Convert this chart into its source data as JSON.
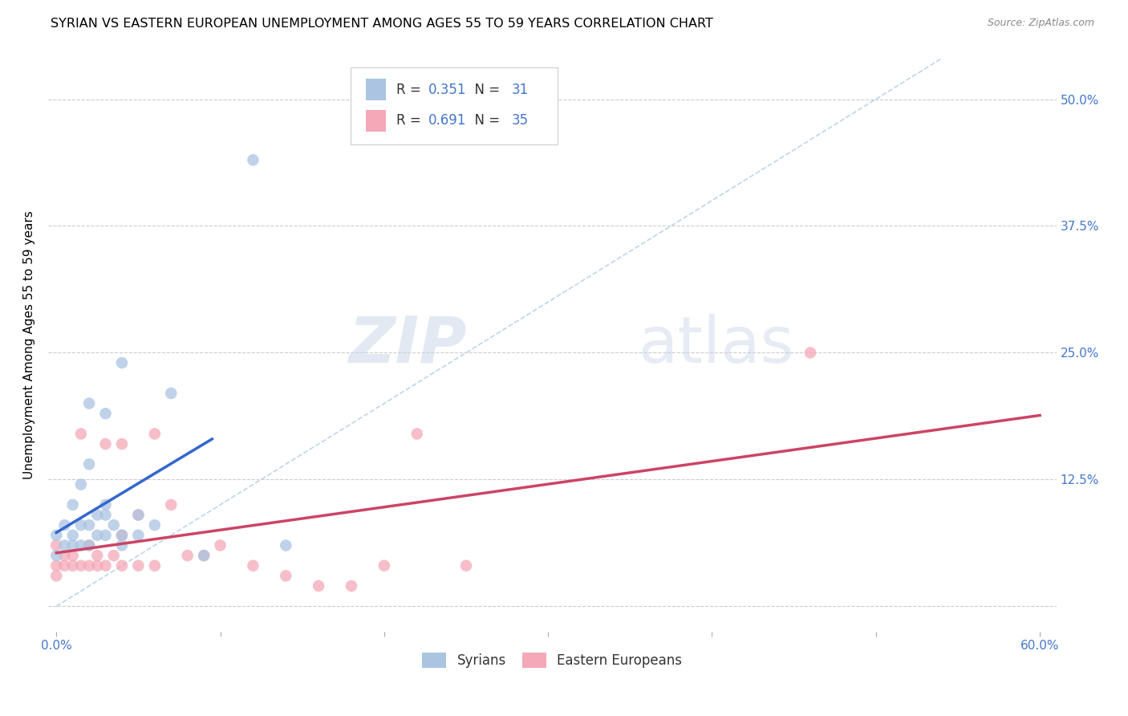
{
  "title": "SYRIAN VS EASTERN EUROPEAN UNEMPLOYMENT AMONG AGES 55 TO 59 YEARS CORRELATION CHART",
  "source": "Source: ZipAtlas.com",
  "ylabel": "Unemployment Among Ages 55 to 59 years",
  "xlim": [
    -0.005,
    0.61
  ],
  "ylim": [
    -0.025,
    0.54
  ],
  "xticks": [
    0.0,
    0.1,
    0.2,
    0.3,
    0.4,
    0.5,
    0.6
  ],
  "xticklabels": [
    "0.0%",
    "",
    "",
    "",
    "",
    "",
    "60.0%"
  ],
  "ytick_positions": [
    0.0,
    0.125,
    0.25,
    0.375,
    0.5
  ],
  "ytick_labels": [
    "",
    "12.5%",
    "25.0%",
    "37.5%",
    "50.0%"
  ],
  "watermark_zip": "ZIP",
  "watermark_atlas": "atlas",
  "syrians_r": 0.351,
  "syrians_n": 31,
  "eastern_r": 0.691,
  "eastern_n": 35,
  "syrians_color": "#aac4e2",
  "eastern_color": "#f4a8b8",
  "trend_syrian_color": "#3366cc",
  "trend_eastern_color": "#cc4466",
  "diagonal_color": "#b8d0e8",
  "syrians_x": [
    0.0,
    0.0,
    0.005,
    0.005,
    0.01,
    0.01,
    0.01,
    0.015,
    0.015,
    0.015,
    0.02,
    0.02,
    0.02,
    0.02,
    0.025,
    0.025,
    0.03,
    0.03,
    0.03,
    0.03,
    0.035,
    0.04,
    0.04,
    0.04,
    0.05,
    0.05,
    0.06,
    0.07,
    0.09,
    0.12,
    0.14
  ],
  "syrians_y": [
    0.05,
    0.07,
    0.06,
    0.08,
    0.06,
    0.07,
    0.1,
    0.06,
    0.08,
    0.12,
    0.06,
    0.08,
    0.14,
    0.2,
    0.07,
    0.09,
    0.07,
    0.09,
    0.1,
    0.19,
    0.08,
    0.06,
    0.07,
    0.24,
    0.07,
    0.09,
    0.08,
    0.21,
    0.05,
    0.44,
    0.06
  ],
  "eastern_x": [
    0.0,
    0.0,
    0.0,
    0.005,
    0.005,
    0.01,
    0.01,
    0.015,
    0.015,
    0.02,
    0.02,
    0.025,
    0.025,
    0.03,
    0.03,
    0.035,
    0.04,
    0.04,
    0.04,
    0.05,
    0.05,
    0.06,
    0.06,
    0.07,
    0.08,
    0.09,
    0.1,
    0.12,
    0.14,
    0.16,
    0.18,
    0.2,
    0.22,
    0.25,
    0.46
  ],
  "eastern_y": [
    0.03,
    0.04,
    0.06,
    0.04,
    0.05,
    0.04,
    0.05,
    0.04,
    0.17,
    0.04,
    0.06,
    0.04,
    0.05,
    0.04,
    0.16,
    0.05,
    0.04,
    0.07,
    0.16,
    0.04,
    0.09,
    0.04,
    0.17,
    0.1,
    0.05,
    0.05,
    0.06,
    0.04,
    0.03,
    0.02,
    0.02,
    0.04,
    0.17,
    0.04,
    0.25
  ],
  "grid_color": "#cccccc",
  "background_color": "#ffffff",
  "title_fontsize": 11.5,
  "axis_label_fontsize": 11,
  "tick_fontsize": 11,
  "tick_color": "#4477cc",
  "scatter_size": 110,
  "scatter_alpha": 0.75
}
